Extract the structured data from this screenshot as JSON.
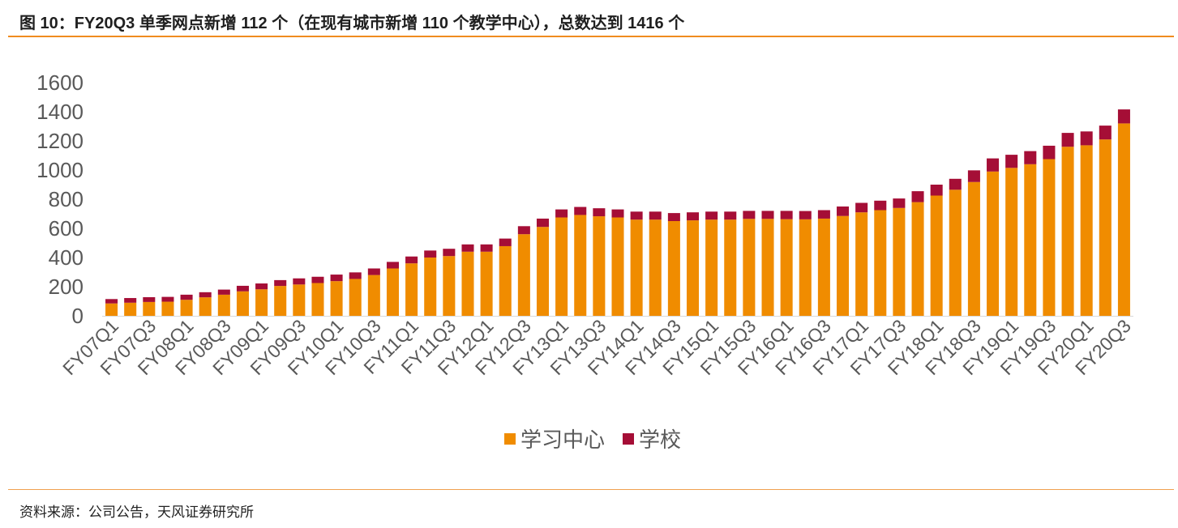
{
  "figure": {
    "title": "图 10：FY20Q3 单季网点新增 112 个（在现有城市新增 110 个教学中心），总数达到 1416 个",
    "source": "资料来源：公司公告，天风证券研究所"
  },
  "chart_data": {
    "type": "bar",
    "stacked": true,
    "title": "",
    "xlabel": "",
    "ylabel": "",
    "ylim": [
      0,
      1600
    ],
    "yticks": [
      0,
      200,
      400,
      600,
      800,
      1000,
      1200,
      1400,
      1600
    ],
    "grid": false,
    "legend_position": "bottom",
    "categories": [
      "FY07Q1",
      "FY07Q2",
      "FY07Q3",
      "FY07Q4",
      "FY08Q1",
      "FY08Q2",
      "FY08Q3",
      "FY08Q4",
      "FY09Q1",
      "FY09Q2",
      "FY09Q3",
      "FY09Q4",
      "FY10Q1",
      "FY10Q2",
      "FY10Q3",
      "FY10Q4",
      "FY11Q1",
      "FY11Q2",
      "FY11Q3",
      "FY11Q4",
      "FY12Q1",
      "FY12Q2",
      "FY12Q3",
      "FY12Q4",
      "FY13Q1",
      "FY13Q2",
      "FY13Q3",
      "FY13Q4",
      "FY14Q1",
      "FY14Q2",
      "FY14Q3",
      "FY14Q4",
      "FY15Q1",
      "FY15Q2",
      "FY15Q3",
      "FY15Q4",
      "FY16Q1",
      "FY16Q2",
      "FY16Q3",
      "FY16Q4",
      "FY17Q1",
      "FY17Q2",
      "FY17Q3",
      "FY17Q4",
      "FY18Q1",
      "FY18Q2",
      "FY18Q3",
      "FY18Q4",
      "FY19Q1",
      "FY19Q2",
      "FY19Q3",
      "FY19Q4",
      "FY20Q1",
      "FY20Q2",
      "FY20Q3"
    ],
    "visible_tick_labels": [
      "FY07Q1",
      "FY07Q3",
      "FY08Q1",
      "FY08Q3",
      "FY09Q1",
      "FY09Q3",
      "FY10Q1",
      "FY10Q3",
      "FY11Q1",
      "FY11Q3",
      "FY12Q1",
      "FY12Q3",
      "FY13Q1",
      "FY13Q3",
      "FY14Q1",
      "FY14Q3",
      "FY15Q1",
      "FY15Q3",
      "FY16Q1",
      "FY16Q3",
      "FY17Q1",
      "FY17Q3",
      "FY18Q1",
      "FY18Q3",
      "FY19Q1",
      "FY19Q3",
      "FY20Q1",
      "FY20Q3"
    ],
    "series": [
      {
        "name": "学习中心",
        "color": "#f08c00",
        "values": [
          85,
          90,
          95,
          97,
          110,
          127,
          145,
          168,
          182,
          205,
          215,
          225,
          238,
          253,
          280,
          325,
          360,
          400,
          410,
          440,
          440,
          478,
          560,
          610,
          675,
          692,
          683,
          675,
          660,
          660,
          650,
          655,
          660,
          660,
          665,
          665,
          663,
          662,
          667,
          685,
          710,
          725,
          740,
          780,
          825,
          865,
          918,
          990,
          1015,
          1040,
          1075,
          1160,
          1170,
          1210,
          1320
        ]
      },
      {
        "name": "学校",
        "color": "#a50e36",
        "values": [
          30,
          32,
          33,
          33,
          35,
          35,
          35,
          38,
          40,
          40,
          42,
          43,
          45,
          45,
          45,
          45,
          47,
          48,
          50,
          50,
          50,
          52,
          55,
          57,
          55,
          55,
          55,
          55,
          55,
          55,
          55,
          55,
          55,
          55,
          55,
          55,
          57,
          57,
          58,
          65,
          65,
          65,
          65,
          75,
          75,
          75,
          80,
          90,
          90,
          90,
          92,
          95,
          95,
          95,
          96
        ]
      }
    ]
  }
}
